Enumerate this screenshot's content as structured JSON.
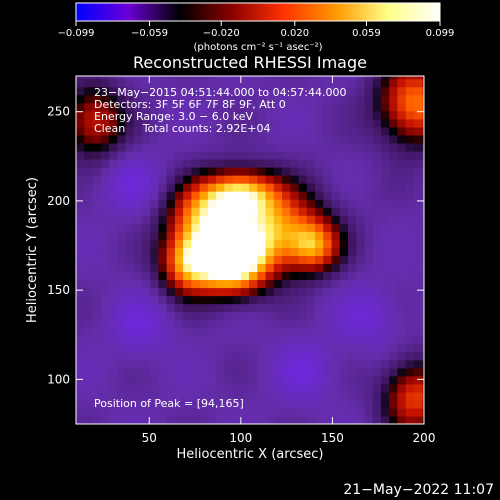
{
  "chart_data": {
    "type": "heatmap",
    "title": "Reconstructed RHESSI Image",
    "xlabel": "Heliocentric X (arcsec)",
    "ylabel": "Heliocentric Y (arcsec)",
    "xlim": [
      10,
      200
    ],
    "ylim": [
      75,
      270
    ],
    "x_ticks": [
      50,
      100,
      150,
      200
    ],
    "y_ticks": [
      100,
      150,
      200,
      250
    ],
    "colorbar": {
      "min": -0.099,
      "max": 0.099,
      "ticks": [
        "−0.099",
        "−0.059",
        "−0.020",
        "0.020",
        "0.059",
        "0.099"
      ],
      "tick_values": [
        -0.099,
        -0.059,
        -0.02,
        0.02,
        0.059,
        0.099
      ],
      "label": "(photons cm⁻² s⁻¹ asec⁻²)",
      "colors": [
        "#0000ff",
        "#6a00d8",
        "#000000",
        "#8b0000",
        "#ff3300",
        "#ff9900",
        "#ffff88",
        "#ffffff"
      ]
    },
    "info_lines": [
      "23−May−2015 04:51:44.000 to 04:57:44.000",
      "Detectors: 3F 5F 6F 7F 8F 9F, Att 0",
      "Energy Range: 3.0 − 6.0 keV",
      "Clean     Total counts: 2.92E+04"
    ],
    "peak_label": "Position of Peak = [94,165]",
    "peak": [
      94,
      165
    ],
    "sources": [
      {
        "x": 94,
        "y": 165,
        "amp": 0.099,
        "sx": 14,
        "sy": 12
      },
      {
        "x": 115,
        "y": 185,
        "amp": 0.06,
        "sx": 20,
        "sy": 16
      },
      {
        "x": 80,
        "y": 190,
        "amp": 0.05,
        "sx": 14,
        "sy": 14
      },
      {
        "x": 100,
        "y": 205,
        "amp": 0.045,
        "sx": 14,
        "sy": 9
      },
      {
        "x": 70,
        "y": 165,
        "amp": 0.04,
        "sx": 10,
        "sy": 12
      },
      {
        "x": 140,
        "y": 175,
        "amp": 0.035,
        "sx": 10,
        "sy": 10
      },
      {
        "x": 195,
        "y": 255,
        "amp": 0.05,
        "sx": 14,
        "sy": 16
      },
      {
        "x": 20,
        "y": 245,
        "amp": 0.025,
        "sx": 12,
        "sy": 14
      },
      {
        "x": 195,
        "y": 90,
        "amp": 0.035,
        "sx": 12,
        "sy": 14
      }
    ]
  },
  "footer": {
    "date": "21−May−2022 11:07"
  }
}
